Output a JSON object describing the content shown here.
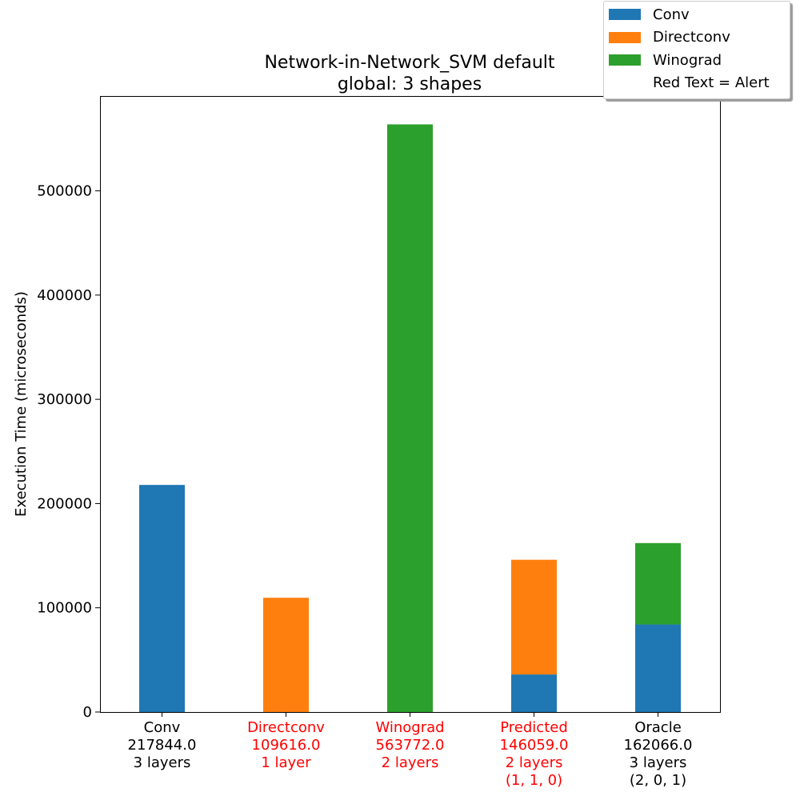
{
  "chart_data": {
    "type": "bar",
    "stacked": true,
    "title": "Network-in-Network_SVM default\nglobal: 3 shapes",
    "xlabel": "",
    "ylabel": "Execution Time (microseconds)",
    "ylim": [
      0,
      591000
    ],
    "yticks": [
      0,
      100000,
      200000,
      300000,
      400000,
      500000
    ],
    "grid": false,
    "legend_position": "top-right",
    "categories": [
      {
        "label": [
          "Conv",
          "217844.0",
          "3 layers"
        ],
        "alert": false
      },
      {
        "label": [
          "Directconv",
          "109616.0",
          "1 layer"
        ],
        "alert": true
      },
      {
        "label": [
          "Winograd",
          "563772.0",
          "2 layers"
        ],
        "alert": true
      },
      {
        "label": [
          "Predicted",
          "146059.0",
          "2 layers",
          "(1, 1, 0)"
        ],
        "alert": true
      },
      {
        "label": [
          "Oracle",
          "162066.0",
          "3 layers",
          "(2, 0, 1)"
        ],
        "alert": false
      }
    ],
    "series": [
      {
        "name": "Conv",
        "color": "#1f77b4",
        "values": [
          217844,
          0,
          0,
          36000,
          84000
        ]
      },
      {
        "name": "Directconv",
        "color": "#ff7f0e",
        "values": [
          0,
          109616,
          0,
          110059,
          0
        ]
      },
      {
        "name": "Winograd",
        "color": "#2ca02c",
        "values": [
          0,
          0,
          563772,
          0,
          78066
        ]
      }
    ],
    "legend": [
      {
        "label": "Conv",
        "color": "#1f77b4"
      },
      {
        "label": "Directconv",
        "color": "#ff7f0e"
      },
      {
        "label": "Winograd",
        "color": "#2ca02c"
      },
      {
        "label": "Red Text = Alert",
        "color": ""
      }
    ],
    "alert_color": "#ff0000"
  }
}
